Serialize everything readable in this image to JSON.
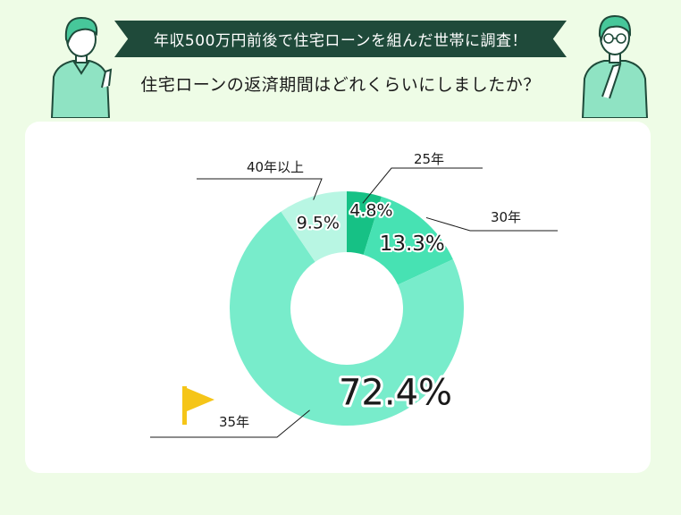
{
  "header": {
    "banner_text": "年収500万円前後で住宅ローンを組んだ世帯に調査！",
    "question": "住宅ローンの返済期間はどれくらいにしましたか？"
  },
  "illustrations": {
    "left": "person-pointing-icon",
    "right": "person-thinking-icon",
    "flag": "flag-icon"
  },
  "colors": {
    "banner_bg": "#1f4a3a",
    "page_bg": "#eefce6",
    "slice_25": "#16c185",
    "slice_30": "#47e2b3",
    "slice_35": "#78eccb",
    "slice_40": "#b8f6e3",
    "flag": "#f5c518"
  },
  "chart_data": {
    "type": "donut",
    "title": "",
    "categories": [
      "25年",
      "30年",
      "35年",
      "40年以上"
    ],
    "values": [
      4.8,
      13.3,
      72.4,
      9.5
    ],
    "value_labels": [
      "4.8%",
      "13.3%",
      "72.4%",
      "9.5%"
    ],
    "unit": "%",
    "start_angle": "12 o'clock",
    "direction": "clockwise",
    "highlight": "35年"
  }
}
